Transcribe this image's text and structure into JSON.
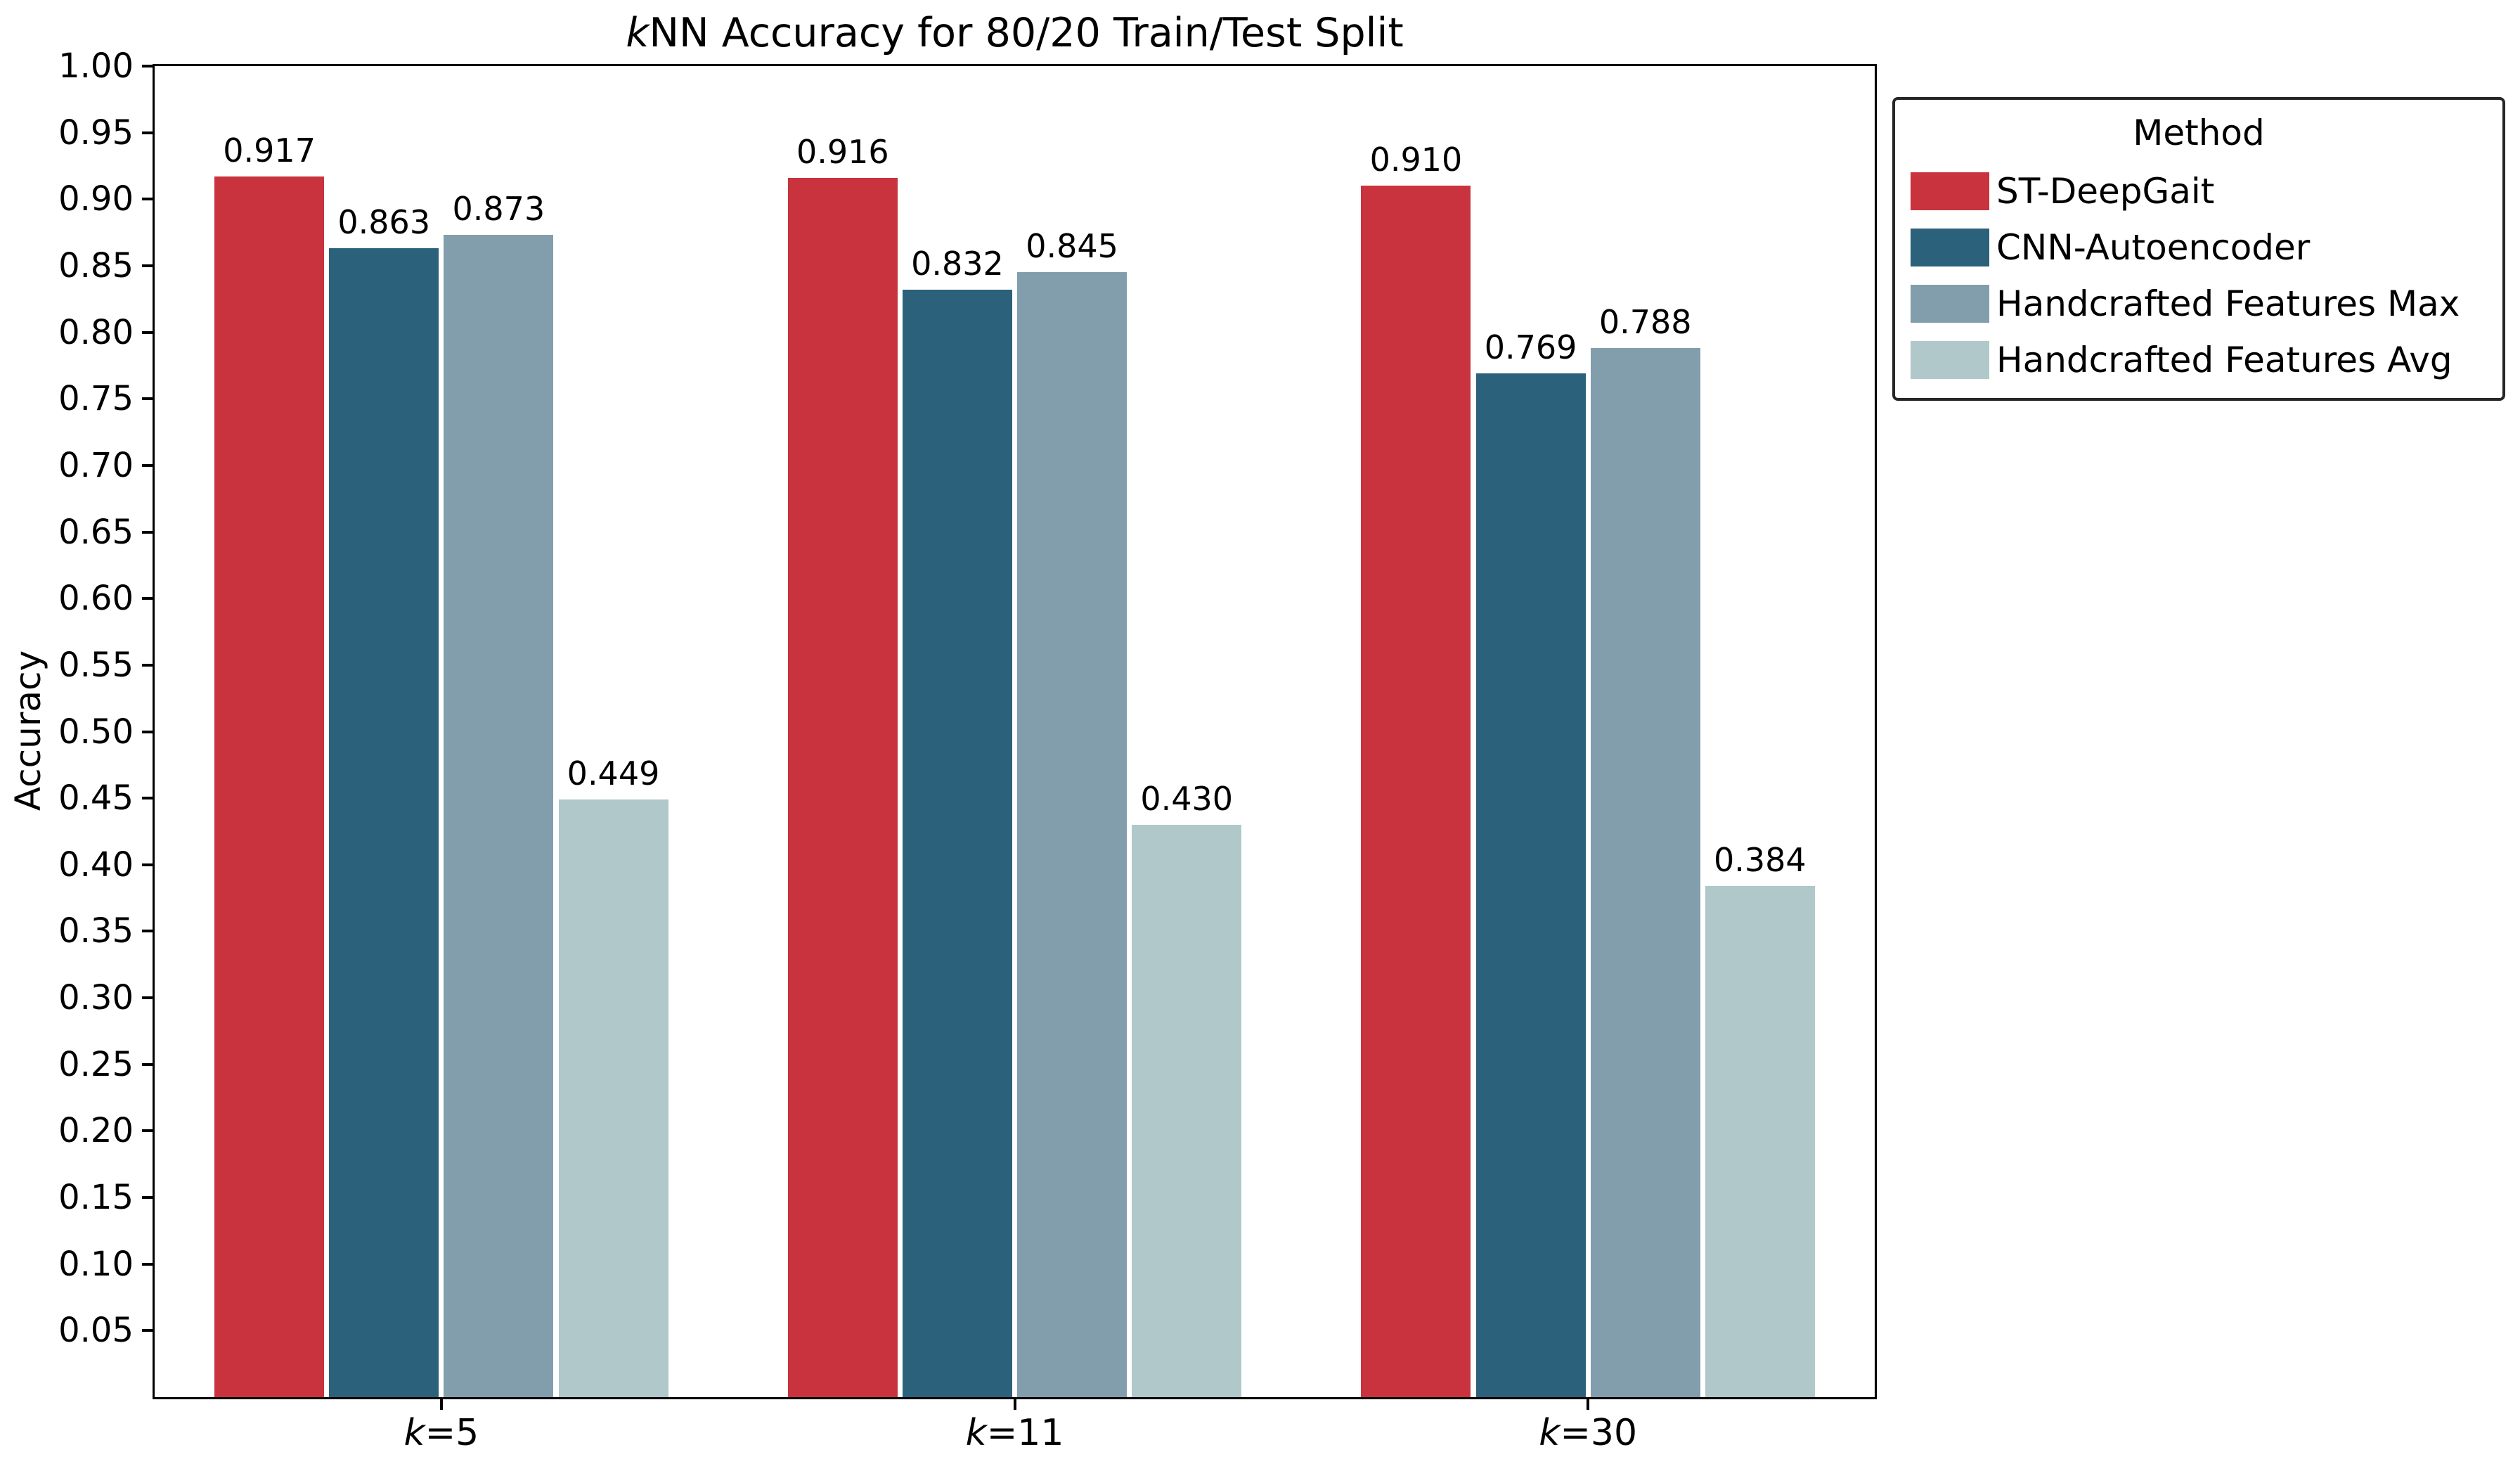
{
  "title": {
    "italic_prefix": "k",
    "rest": "NN Accuracy for 80/20 Train/Test Split"
  },
  "legend": {
    "title": "Method"
  },
  "chart_data": {
    "type": "bar",
    "title": "kNN Accuracy for 80/20 Train/Test Split",
    "xlabel": "",
    "ylabel": "Accuracy",
    "categories": [
      "k=5",
      "k=11",
      "k=30"
    ],
    "series": [
      {
        "name": "ST-DeepGait",
        "color": "#c8333e",
        "values": [
          0.917,
          0.916,
          0.91
        ]
      },
      {
        "name": "CNN-Autoencoder",
        "color": "#2b617a",
        "values": [
          0.863,
          0.832,
          0.769
        ]
      },
      {
        "name": "Handcrafted Features Max",
        "color": "#829eac",
        "values": [
          0.873,
          0.845,
          0.788
        ]
      },
      {
        "name": "Handcrafted Features Avg",
        "color": "#b0c8c9",
        "values": [
          0.449,
          0.43,
          0.384
        ]
      }
    ],
    "bar_label_decimals": 3,
    "ylim": [
      0,
      1.0
    ],
    "ytick_step": 0.05,
    "ytick_decimals": 2,
    "grid": false,
    "legend_title": "Method",
    "legend_position": "outside-upper-right"
  }
}
